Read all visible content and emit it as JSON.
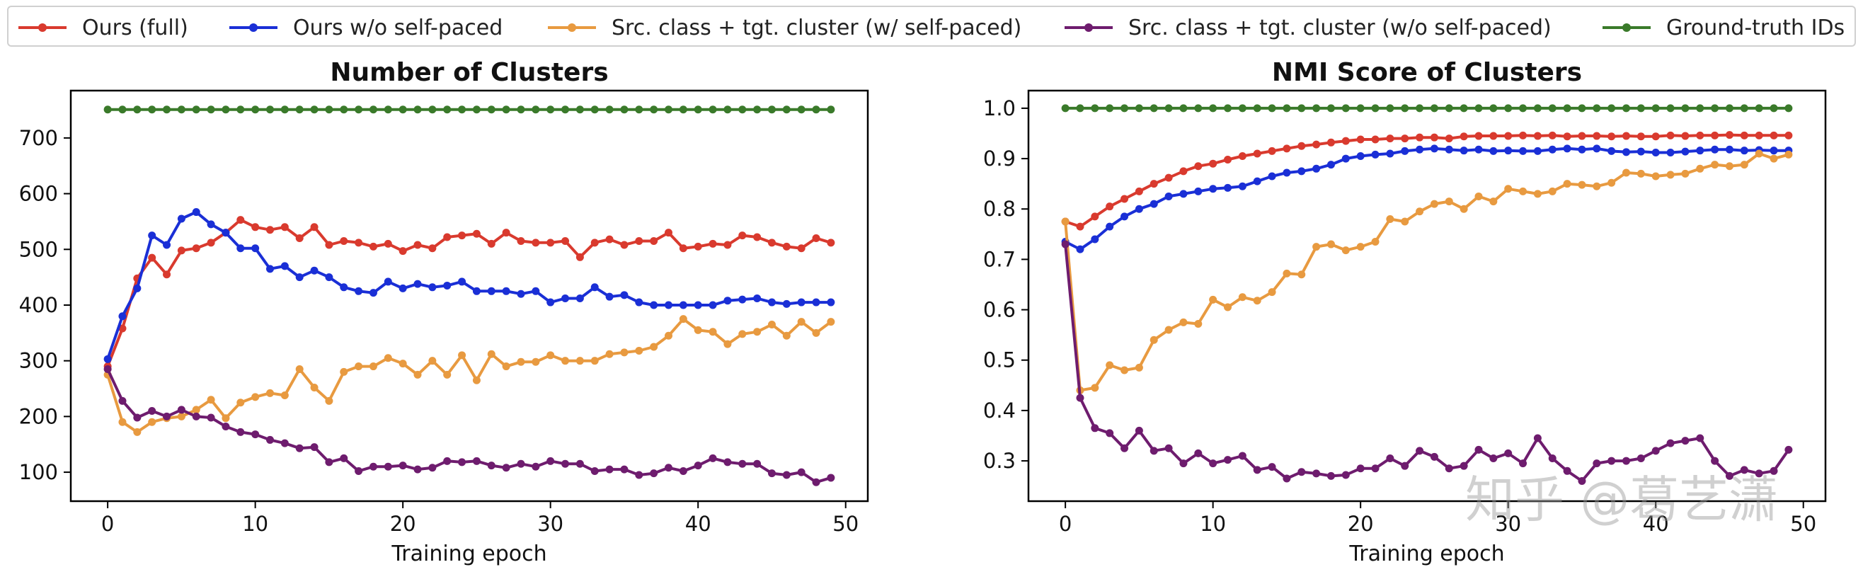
{
  "legend": {
    "entries": [
      {
        "label": "Ours (full)",
        "color": "#d93a2e"
      },
      {
        "label": "Ours w/o self-paced",
        "color": "#1a2fd6"
      },
      {
        "label": "Src. class + tgt. cluster (w/ self-paced)",
        "color": "#e89a40"
      },
      {
        "label": "Src. class + tgt. cluster (w/o self-paced)",
        "color": "#6e1c6e"
      },
      {
        "label": "Ground-truth IDs",
        "color": "#3a7a2a"
      }
    ]
  },
  "watermark": "知乎 @葛艺潇",
  "chart_data": [
    {
      "type": "line",
      "title": "Number of Clusters",
      "xlabel": "Training epoch",
      "ylabel": "",
      "xlim": [
        -2.5,
        51.5
      ],
      "ylim": [
        48,
        785
      ],
      "xticks": [
        0,
        10,
        20,
        30,
        40,
        50
      ],
      "yticks": [
        100,
        200,
        300,
        400,
        500,
        600,
        700
      ],
      "x": [
        0,
        1,
        2,
        3,
        4,
        5,
        6,
        7,
        8,
        9,
        10,
        11,
        12,
        13,
        14,
        15,
        16,
        17,
        18,
        19,
        20,
        21,
        22,
        23,
        24,
        25,
        26,
        27,
        28,
        29,
        30,
        31,
        32,
        33,
        34,
        35,
        36,
        37,
        38,
        39,
        40,
        41,
        42,
        43,
        44,
        45,
        46,
        47,
        48,
        49
      ],
      "series": [
        {
          "name": "Ours (full)",
          "values": [
            290,
            358,
            448,
            485,
            455,
            498,
            502,
            512,
            530,
            553,
            540,
            535,
            540,
            520,
            540,
            508,
            515,
            512,
            505,
            510,
            497,
            508,
            502,
            522,
            525,
            528,
            510,
            530,
            515,
            512,
            512,
            515,
            486,
            512,
            518,
            508,
            515,
            515,
            530,
            502,
            505,
            510,
            508,
            525,
            522,
            512,
            505,
            502,
            520,
            512
          ]
        },
        {
          "name": "Ours w/o self-paced",
          "values": [
            303,
            380,
            430,
            525,
            508,
            555,
            567,
            545,
            530,
            502,
            502,
            465,
            470,
            450,
            462,
            450,
            432,
            425,
            422,
            442,
            430,
            438,
            432,
            435,
            442,
            425,
            425,
            425,
            420,
            425,
            405,
            412,
            412,
            432,
            415,
            418,
            405,
            400,
            400,
            400,
            400,
            400,
            408,
            410,
            412,
            405,
            402,
            405,
            405,
            405
          ]
        },
        {
          "name": "Src. class + tgt. cluster (w/ self-paced)",
          "values": [
            275,
            190,
            172,
            190,
            197,
            200,
            212,
            230,
            197,
            225,
            235,
            242,
            238,
            285,
            252,
            228,
            280,
            290,
            290,
            305,
            295,
            275,
            300,
            275,
            310,
            265,
            312,
            290,
            298,
            298,
            310,
            300,
            300,
            300,
            312,
            315,
            318,
            325,
            345,
            375,
            355,
            352,
            330,
            348,
            352,
            365,
            345,
            370,
            350,
            370
          ]
        },
        {
          "name": "Src. class + tgt. cluster (w/o self-paced)",
          "values": [
            285,
            228,
            198,
            210,
            200,
            212,
            200,
            198,
            182,
            172,
            168,
            158,
            152,
            143,
            145,
            118,
            125,
            102,
            110,
            110,
            112,
            105,
            108,
            120,
            118,
            120,
            112,
            108,
            115,
            110,
            120,
            115,
            115,
            102,
            105,
            105,
            95,
            98,
            108,
            102,
            112,
            125,
            118,
            115,
            115,
            98,
            95,
            100,
            82,
            90
          ]
        },
        {
          "name": "Ground-truth IDs",
          "values": [
            751,
            751,
            751,
            751,
            751,
            751,
            751,
            751,
            751,
            751,
            751,
            751,
            751,
            751,
            751,
            751,
            751,
            751,
            751,
            751,
            751,
            751,
            751,
            751,
            751,
            751,
            751,
            751,
            751,
            751,
            751,
            751,
            751,
            751,
            751,
            751,
            751,
            751,
            751,
            751,
            751,
            751,
            751,
            751,
            751,
            751,
            751,
            751,
            751,
            751
          ]
        }
      ]
    },
    {
      "type": "line",
      "title": "NMI Score of Clusters",
      "xlabel": "Training epoch",
      "ylabel": "",
      "xlim": [
        -2.5,
        51.5
      ],
      "ylim": [
        0.22,
        1.035
      ],
      "xticks": [
        0,
        10,
        20,
        30,
        40,
        50
      ],
      "yticks": [
        0.3,
        0.4,
        0.5,
        0.6,
        0.7,
        0.8,
        0.9,
        1.0
      ],
      "x": [
        0,
        1,
        2,
        3,
        4,
        5,
        6,
        7,
        8,
        9,
        10,
        11,
        12,
        13,
        14,
        15,
        16,
        17,
        18,
        19,
        20,
        21,
        22,
        23,
        24,
        25,
        26,
        27,
        28,
        29,
        30,
        31,
        32,
        33,
        34,
        35,
        36,
        37,
        38,
        39,
        40,
        41,
        42,
        43,
        44,
        45,
        46,
        47,
        48,
        49
      ],
      "series": [
        {
          "name": "Ours (full)",
          "values": [
            0.775,
            0.765,
            0.785,
            0.805,
            0.82,
            0.835,
            0.85,
            0.862,
            0.875,
            0.885,
            0.89,
            0.898,
            0.905,
            0.91,
            0.915,
            0.92,
            0.925,
            0.928,
            0.932,
            0.935,
            0.938,
            0.938,
            0.94,
            0.94,
            0.942,
            0.942,
            0.94,
            0.944,
            0.945,
            0.945,
            0.945,
            0.946,
            0.945,
            0.946,
            0.944,
            0.945,
            0.945,
            0.944,
            0.945,
            0.944,
            0.944,
            0.946,
            0.945,
            0.946,
            0.946,
            0.947,
            0.946,
            0.946,
            0.946,
            0.946
          ]
        },
        {
          "name": "Ours w/o self-paced",
          "values": [
            0.735,
            0.72,
            0.74,
            0.765,
            0.785,
            0.8,
            0.81,
            0.825,
            0.83,
            0.835,
            0.84,
            0.842,
            0.845,
            0.855,
            0.865,
            0.872,
            0.875,
            0.88,
            0.888,
            0.9,
            0.905,
            0.908,
            0.91,
            0.915,
            0.918,
            0.92,
            0.918,
            0.916,
            0.918,
            0.915,
            0.916,
            0.915,
            0.915,
            0.918,
            0.92,
            0.918,
            0.92,
            0.915,
            0.913,
            0.914,
            0.912,
            0.912,
            0.914,
            0.916,
            0.918,
            0.918,
            0.916,
            0.917,
            0.916,
            0.916
          ]
        },
        {
          "name": "Src. class + tgt. cluster (w/ self-paced)",
          "values": [
            0.775,
            0.44,
            0.445,
            0.49,
            0.48,
            0.485,
            0.54,
            0.56,
            0.575,
            0.572,
            0.62,
            0.605,
            0.625,
            0.618,
            0.635,
            0.672,
            0.67,
            0.725,
            0.73,
            0.718,
            0.725,
            0.735,
            0.78,
            0.775,
            0.795,
            0.81,
            0.815,
            0.8,
            0.825,
            0.815,
            0.84,
            0.835,
            0.83,
            0.835,
            0.85,
            0.848,
            0.845,
            0.852,
            0.872,
            0.87,
            0.865,
            0.868,
            0.87,
            0.88,
            0.888,
            0.885,
            0.888,
            0.91,
            0.9,
            0.908
          ]
        },
        {
          "name": "Src. class + tgt. cluster (w/o self-paced)",
          "values": [
            0.73,
            0.425,
            0.365,
            0.355,
            0.325,
            0.36,
            0.32,
            0.325,
            0.295,
            0.315,
            0.295,
            0.302,
            0.31,
            0.282,
            0.288,
            0.265,
            0.278,
            0.275,
            0.27,
            0.272,
            0.285,
            0.285,
            0.305,
            0.29,
            0.32,
            0.308,
            0.285,
            0.29,
            0.322,
            0.305,
            0.315,
            0.295,
            0.345,
            0.305,
            0.28,
            0.26,
            0.295,
            0.3,
            0.3,
            0.305,
            0.32,
            0.335,
            0.34,
            0.345,
            0.3,
            0.27,
            0.282,
            0.275,
            0.28,
            0.322
          ]
        },
        {
          "name": "Ground-truth IDs",
          "values": [
            1.0,
            1.0,
            1.0,
            1.0,
            1.0,
            1.0,
            1.0,
            1.0,
            1.0,
            1.0,
            1.0,
            1.0,
            1.0,
            1.0,
            1.0,
            1.0,
            1.0,
            1.0,
            1.0,
            1.0,
            1.0,
            1.0,
            1.0,
            1.0,
            1.0,
            1.0,
            1.0,
            1.0,
            1.0,
            1.0,
            1.0,
            1.0,
            1.0,
            1.0,
            1.0,
            1.0,
            1.0,
            1.0,
            1.0,
            1.0,
            1.0,
            1.0,
            1.0,
            1.0,
            1.0,
            1.0,
            1.0,
            1.0,
            1.0,
            1.0
          ]
        }
      ]
    }
  ]
}
